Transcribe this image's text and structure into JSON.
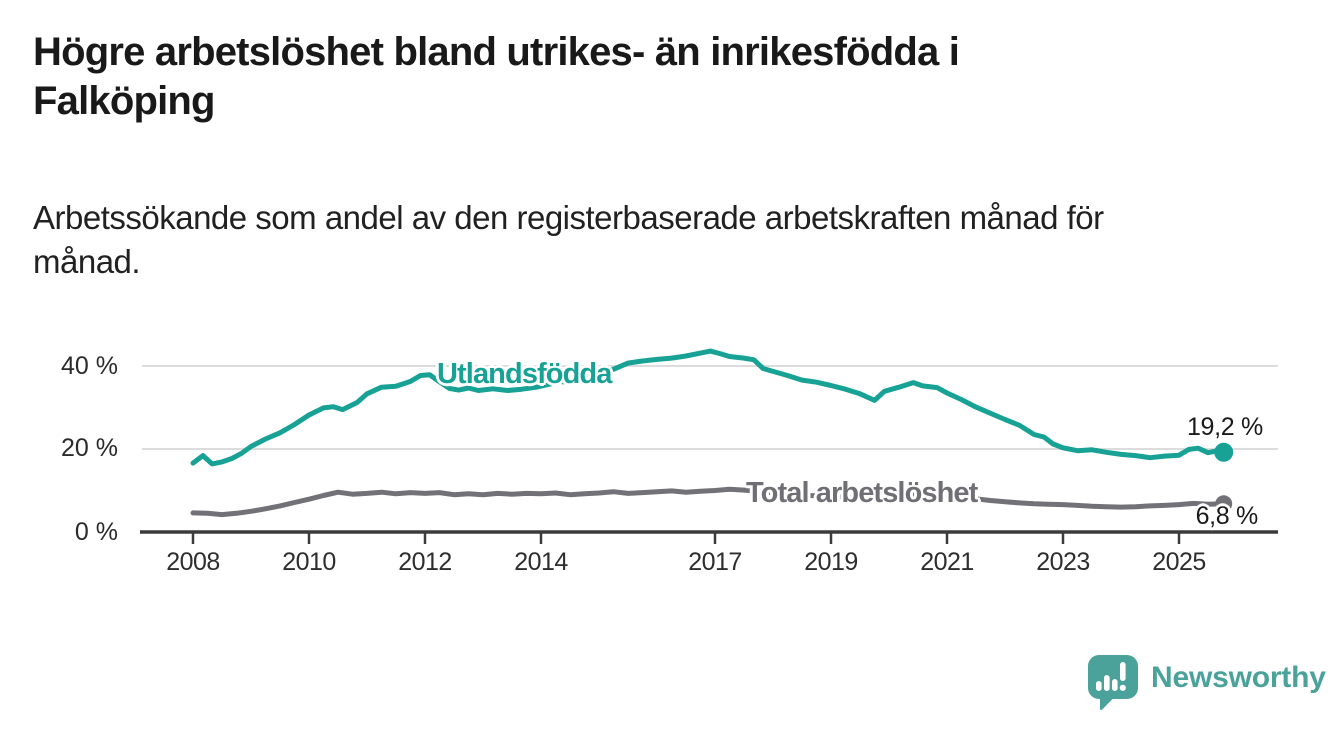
{
  "header": {
    "title": "Högre arbetslöshet bland utrikes- än inrikesfödda i\nFalköping",
    "subtitle": "Arbetssökande som andel av den registerbaserade arbetskraften månad för\nmånad."
  },
  "chart": {
    "series_labels": {
      "utlandsfodda": "Utlandsfödda",
      "total": "Total arbetslöshet"
    },
    "end_labels": {
      "utlandsfodda": "19,2 %",
      "total": "6,8 %"
    },
    "colors": {
      "utlandsfodda": "#17a295",
      "total": "#717177",
      "gridline": "#dcdcdc",
      "axis": "#3b3b3b",
      "text": "#1a1a1a"
    }
  },
  "footer": {
    "brand": "Newsworthy",
    "logo_icon": "speech-bubble-bar-chart-exclamation",
    "brand_color": "#4aa29b"
  },
  "chart_data": {
    "type": "line",
    "title": "Högre arbetslöshet bland utrikes- än inrikesfödda i Falköping",
    "subtitle": "Arbetssökande som andel av den registerbaserade arbetskraften månad för månad.",
    "x_unit": "year (monthly observations)",
    "xlim": [
      2008,
      2025.9
    ],
    "ylim": [
      0,
      44
    ],
    "grid": "horizontal-only",
    "y_gridlines": [
      20,
      40
    ],
    "y_tick_values": [
      0,
      20,
      40
    ],
    "y_tick_labels": [
      "0 %",
      "20 %",
      "40 %"
    ],
    "x_tick_values": [
      2008,
      2010,
      2012,
      2014,
      2017,
      2019,
      2021,
      2023,
      2025
    ],
    "x_tick_labels": [
      "2008",
      "2010",
      "2012",
      "2014",
      "2017",
      "2019",
      "2021",
      "2023",
      "2025"
    ],
    "legend_position": "inline-labels-on-lines",
    "series": [
      {
        "name": "Utlandsfödda",
        "color": "#17a295",
        "end_value": 19.2,
        "end_label": "19,2 %",
        "points": [
          [
            2008.0,
            16.6
          ],
          [
            2008.17,
            18.4
          ],
          [
            2008.33,
            16.4
          ],
          [
            2008.5,
            16.9
          ],
          [
            2008.67,
            17.7
          ],
          [
            2008.83,
            18.9
          ],
          [
            2009.0,
            20.6
          ],
          [
            2009.25,
            22.4
          ],
          [
            2009.5,
            23.9
          ],
          [
            2009.75,
            25.9
          ],
          [
            2010.0,
            28.2
          ],
          [
            2010.25,
            29.9
          ],
          [
            2010.42,
            30.2
          ],
          [
            2010.58,
            29.5
          ],
          [
            2010.83,
            31.2
          ],
          [
            2011.0,
            33.3
          ],
          [
            2011.25,
            34.9
          ],
          [
            2011.5,
            35.1
          ],
          [
            2011.75,
            36.3
          ],
          [
            2011.92,
            37.7
          ],
          [
            2012.08,
            37.9
          ],
          [
            2012.25,
            36.2
          ],
          [
            2012.42,
            34.6
          ],
          [
            2012.58,
            34.2
          ],
          [
            2012.75,
            34.7
          ],
          [
            2012.92,
            34.1
          ],
          [
            2013.17,
            34.5
          ],
          [
            2013.42,
            34.1
          ],
          [
            2013.67,
            34.4
          ],
          [
            2013.92,
            34.9
          ],
          [
            2014.17,
            35.7
          ],
          [
            2014.33,
            36.3
          ],
          [
            2014.5,
            36.0
          ],
          [
            2014.75,
            37.3
          ],
          [
            2015.0,
            38.3
          ],
          [
            2015.25,
            39.2
          ],
          [
            2015.5,
            40.7
          ],
          [
            2015.75,
            41.2
          ],
          [
            2016.0,
            41.6
          ],
          [
            2016.25,
            41.9
          ],
          [
            2016.5,
            42.4
          ],
          [
            2016.75,
            43.1
          ],
          [
            2016.92,
            43.6
          ],
          [
            2017.08,
            43.0
          ],
          [
            2017.25,
            42.3
          ],
          [
            2017.5,
            41.9
          ],
          [
            2017.67,
            41.5
          ],
          [
            2017.83,
            39.4
          ],
          [
            2018.0,
            38.7
          ],
          [
            2018.25,
            37.7
          ],
          [
            2018.5,
            36.6
          ],
          [
            2018.75,
            36.1
          ],
          [
            2019.0,
            35.3
          ],
          [
            2019.25,
            34.4
          ],
          [
            2019.5,
            33.3
          ],
          [
            2019.75,
            31.7
          ],
          [
            2019.92,
            33.9
          ],
          [
            2020.17,
            34.9
          ],
          [
            2020.42,
            36.0
          ],
          [
            2020.58,
            35.2
          ],
          [
            2020.83,
            34.8
          ],
          [
            2021.0,
            33.5
          ],
          [
            2021.25,
            31.9
          ],
          [
            2021.5,
            30.1
          ],
          [
            2021.75,
            28.6
          ],
          [
            2022.0,
            27.1
          ],
          [
            2022.25,
            25.7
          ],
          [
            2022.5,
            23.5
          ],
          [
            2022.67,
            22.9
          ],
          [
            2022.83,
            21.2
          ],
          [
            2023.0,
            20.3
          ],
          [
            2023.25,
            19.6
          ],
          [
            2023.5,
            19.8
          ],
          [
            2023.75,
            19.2
          ],
          [
            2024.0,
            18.7
          ],
          [
            2024.25,
            18.4
          ],
          [
            2024.5,
            17.9
          ],
          [
            2024.75,
            18.3
          ],
          [
            2025.0,
            18.5
          ],
          [
            2025.17,
            19.9
          ],
          [
            2025.33,
            20.2
          ],
          [
            2025.5,
            19.1
          ],
          [
            2025.67,
            19.6
          ],
          [
            2025.77,
            19.2
          ]
        ]
      },
      {
        "name": "Total arbetslöshet",
        "color": "#717177",
        "end_value": 6.8,
        "end_label": "6,8 %",
        "points": [
          [
            2008.0,
            4.6
          ],
          [
            2008.25,
            4.5
          ],
          [
            2008.5,
            4.2
          ],
          [
            2008.75,
            4.5
          ],
          [
            2009.0,
            5.0
          ],
          [
            2009.25,
            5.6
          ],
          [
            2009.5,
            6.3
          ],
          [
            2009.75,
            7.1
          ],
          [
            2010.0,
            7.9
          ],
          [
            2010.25,
            8.8
          ],
          [
            2010.5,
            9.6
          ],
          [
            2010.75,
            9.1
          ],
          [
            2011.0,
            9.3
          ],
          [
            2011.25,
            9.6
          ],
          [
            2011.5,
            9.2
          ],
          [
            2011.75,
            9.5
          ],
          [
            2012.0,
            9.3
          ],
          [
            2012.25,
            9.5
          ],
          [
            2012.5,
            9.0
          ],
          [
            2012.75,
            9.2
          ],
          [
            2013.0,
            9.0
          ],
          [
            2013.25,
            9.3
          ],
          [
            2013.5,
            9.1
          ],
          [
            2013.75,
            9.3
          ],
          [
            2014.0,
            9.2
          ],
          [
            2014.25,
            9.4
          ],
          [
            2014.5,
            9.0
          ],
          [
            2014.75,
            9.2
          ],
          [
            2015.0,
            9.4
          ],
          [
            2015.25,
            9.7
          ],
          [
            2015.5,
            9.3
          ],
          [
            2015.75,
            9.5
          ],
          [
            2016.0,
            9.7
          ],
          [
            2016.25,
            9.9
          ],
          [
            2016.5,
            9.6
          ],
          [
            2016.75,
            9.8
          ],
          [
            2017.0,
            10.0
          ],
          [
            2017.25,
            10.3
          ],
          [
            2017.5,
            10.1
          ],
          [
            2017.75,
            9.8
          ],
          [
            2018.0,
            9.5
          ],
          [
            2018.25,
            9.2
          ],
          [
            2018.5,
            8.9
          ],
          [
            2018.75,
            8.7
          ],
          [
            2019.0,
            8.6
          ],
          [
            2019.25,
            8.4
          ],
          [
            2019.5,
            8.3
          ],
          [
            2019.75,
            8.2
          ],
          [
            2020.0,
            8.4
          ],
          [
            2020.25,
            8.8
          ],
          [
            2020.5,
            9.2
          ],
          [
            2020.75,
            9.0
          ],
          [
            2021.0,
            8.8
          ],
          [
            2021.25,
            8.4
          ],
          [
            2021.5,
            8.0
          ],
          [
            2021.75,
            7.6
          ],
          [
            2022.0,
            7.3
          ],
          [
            2022.25,
            7.0
          ],
          [
            2022.5,
            6.8
          ],
          [
            2022.75,
            6.7
          ],
          [
            2023.0,
            6.6
          ],
          [
            2023.25,
            6.4
          ],
          [
            2023.5,
            6.2
          ],
          [
            2023.75,
            6.1
          ],
          [
            2024.0,
            6.0
          ],
          [
            2024.25,
            6.1
          ],
          [
            2024.5,
            6.3
          ],
          [
            2024.75,
            6.4
          ],
          [
            2025.0,
            6.6
          ],
          [
            2025.25,
            6.9
          ],
          [
            2025.5,
            6.7
          ],
          [
            2025.77,
            6.8
          ]
        ]
      }
    ]
  }
}
